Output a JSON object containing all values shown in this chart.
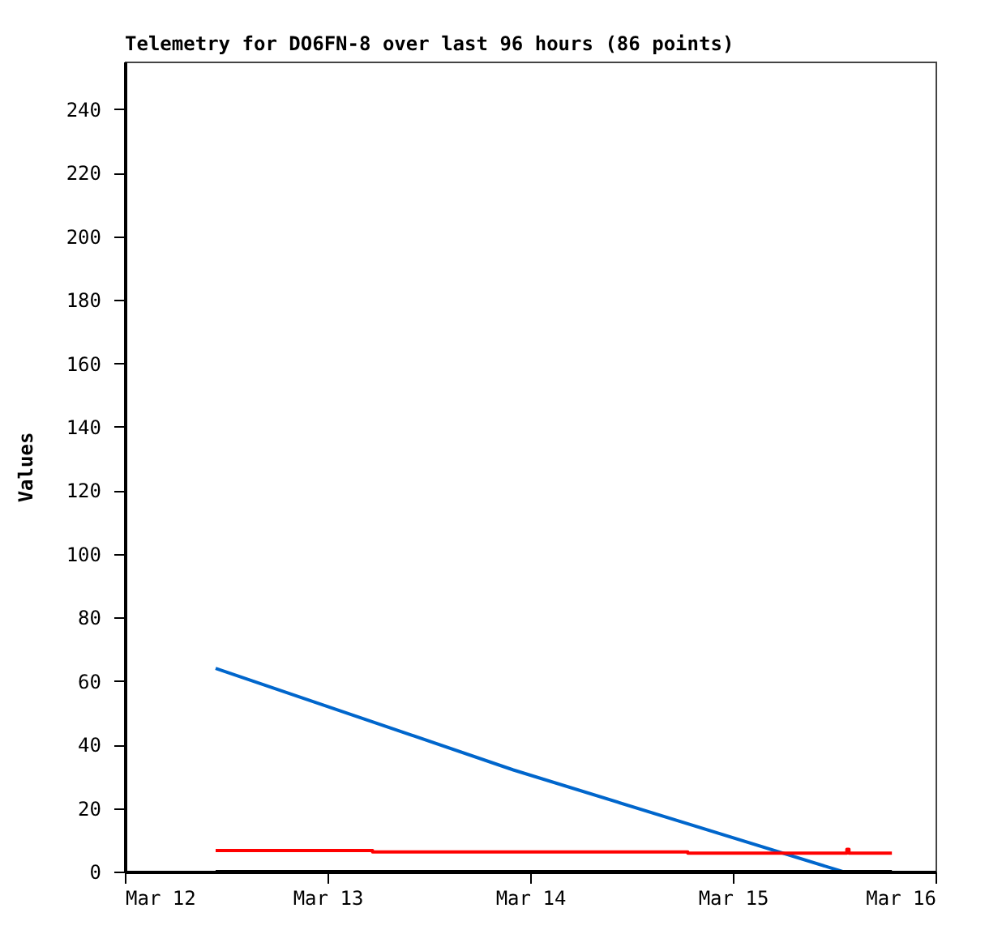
{
  "chart_data": {
    "type": "line",
    "title": "Telemetry for DO6FN-8 over last 96 hours (86 points)",
    "ylabel": "Values",
    "xlim": [
      "--03-12",
      "--03-16"
    ],
    "xticks": [
      {
        "value": "--03-12",
        "label": "Mar 12"
      },
      {
        "value": "--03-13",
        "label": "Mar 13"
      },
      {
        "value": "--03-14",
        "label": "Mar 14"
      },
      {
        "value": "--03-15",
        "label": "Mar 15"
      },
      {
        "value": "--03-16",
        "label": "Mar 16"
      }
    ],
    "ylim": [
      0,
      255
    ],
    "yticks": [
      0,
      20,
      40,
      60,
      80,
      100,
      120,
      140,
      160,
      180,
      200,
      220,
      240
    ],
    "grid": false,
    "marker": "none",
    "series": [
      {
        "type": "line",
        "color": "#0066cc",
        "x": [
          "--03-12T10:45",
          "--03-13T22:00",
          "--03-15T13:00"
        ],
        "values": [
          64,
          32,
          0
        ]
      },
      {
        "type": "step",
        "color": "#ff0000",
        "x": [
          "--03-12T10:45",
          "--03-13T05:20",
          "--03-14T18:40",
          "--03-15T13:30",
          "--03-15T13:45",
          "--03-15T18:50"
        ],
        "values": [
          6.6,
          6.2,
          5.8,
          7,
          5.8,
          5.8
        ]
      },
      {
        "type": "line",
        "color": "#000000",
        "x": [
          "--03-12T10:45",
          "--03-15T18:50"
        ],
        "values": [
          0,
          0
        ]
      }
    ]
  }
}
